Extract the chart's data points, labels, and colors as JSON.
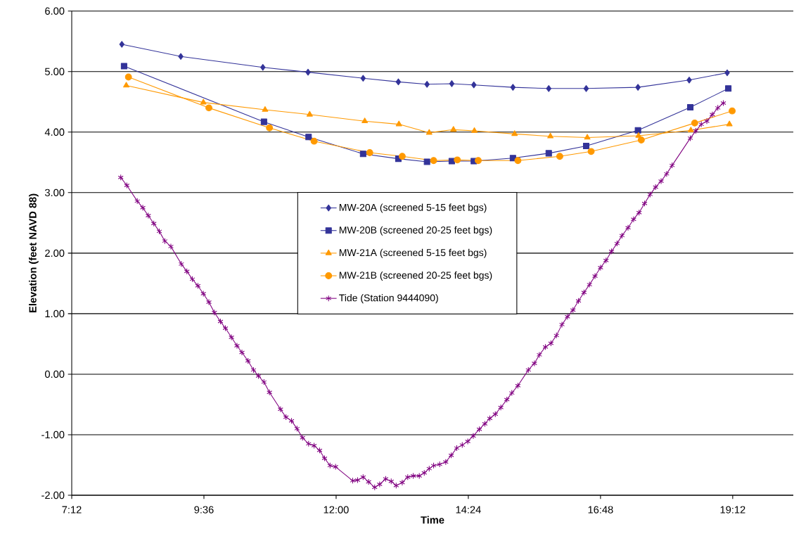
{
  "chart_data": {
    "type": "line",
    "xlabel": "Time",
    "ylabel": "Elevation (feet NAVD 88)",
    "xlim": [
      7.2,
      20.3
    ],
    "ylim": [
      -2,
      6
    ],
    "xticks": [
      {
        "value": 7.2,
        "label": "7:12"
      },
      {
        "value": 9.6,
        "label": "9:36"
      },
      {
        "value": 12,
        "label": "12:00"
      },
      {
        "value": 14.4,
        "label": "14:24"
      },
      {
        "value": 16.8,
        "label": "16:48"
      },
      {
        "value": 19.2,
        "label": "19:12"
      }
    ],
    "yticks": [
      {
        "value": -2,
        "label": "-2.00"
      },
      {
        "value": -1,
        "label": "-1.00"
      },
      {
        "value": 0,
        "label": "0.00"
      },
      {
        "value": 1,
        "label": "1.00"
      },
      {
        "value": 2,
        "label": "2.00"
      },
      {
        "value": 3,
        "label": "3.00"
      },
      {
        "value": 4,
        "label": "4.00"
      },
      {
        "value": 5,
        "label": "5.00"
      },
      {
        "value": 6,
        "label": "6.00"
      }
    ],
    "grid": "y",
    "legend": "center",
    "line_style": "solid",
    "series": [
      {
        "name": "MW-20A (screened 5-15 feet bgs)",
        "color": "#333399",
        "marker": "diamond",
        "x": [
          8.11,
          9.18,
          10.67,
          11.49,
          12.49,
          13.13,
          13.65,
          14.1,
          14.5,
          15.21,
          15.86,
          16.54,
          17.48,
          18.41,
          19.1
        ],
        "values": [
          5.45,
          5.25,
          5.07,
          4.99,
          4.89,
          4.83,
          4.79,
          4.8,
          4.78,
          4.74,
          4.72,
          4.72,
          4.74,
          4.86,
          4.98
        ]
      },
      {
        "name": "MW-20B (screened 20-25 feet bgs)",
        "color": "#333399",
        "marker": "square",
        "x": [
          8.15,
          10.69,
          11.5,
          12.49,
          13.13,
          13.65,
          14.1,
          14.5,
          15.21,
          15.86,
          16.54,
          17.48,
          18.43,
          19.12
        ],
        "values": [
          5.09,
          4.17,
          3.92,
          3.64,
          3.56,
          3.51,
          3.52,
          3.52,
          3.57,
          3.65,
          3.77,
          4.03,
          4.41,
          4.72
        ]
      },
      {
        "name": "MW-21A (screened 5-15 feet bgs)",
        "color": "#ff9900",
        "marker": "triangle",
        "x": [
          8.19,
          9.59,
          10.71,
          11.52,
          12.52,
          13.14,
          13.69,
          14.13,
          14.51,
          15.24,
          15.89,
          16.56,
          17.49,
          18.44,
          19.14
        ],
        "values": [
          4.77,
          4.49,
          4.37,
          4.29,
          4.18,
          4.13,
          3.99,
          4.04,
          4.02,
          3.97,
          3.93,
          3.91,
          3.94,
          4.03,
          4.13
        ]
      },
      {
        "name": "MW-21B (screened 20-25 feet bgs)",
        "color": "#ff9900",
        "marker": "circle",
        "x": [
          8.23,
          9.69,
          10.79,
          11.6,
          12.61,
          13.2,
          13.77,
          14.2,
          14.58,
          15.3,
          16.06,
          16.63,
          17.54,
          18.51,
          19.19
        ],
        "values": [
          4.91,
          4.4,
          4.07,
          3.85,
          3.66,
          3.6,
          3.53,
          3.54,
          3.53,
          3.53,
          3.6,
          3.68,
          3.87,
          4.15,
          4.35
        ]
      },
      {
        "name": "Tide (Station 9444090)",
        "color": "#800080",
        "marker": "cross",
        "x": [
          8.09,
          8.2,
          8.39,
          8.49,
          8.59,
          8.69,
          8.79,
          8.89,
          9.0,
          9.19,
          9.29,
          9.39,
          9.49,
          9.59,
          9.69,
          9.79,
          9.9,
          9.99,
          10.1,
          10.2,
          10.29,
          10.4,
          10.5,
          10.59,
          10.69,
          10.79,
          10.99,
          11.09,
          11.19,
          11.29,
          11.39,
          11.5,
          11.6,
          11.7,
          11.79,
          11.89,
          11.99,
          12.3,
          12.39,
          12.49,
          12.59,
          12.7,
          12.79,
          12.9,
          13.0,
          13.09,
          13.2,
          13.3,
          13.4,
          13.51,
          13.6,
          13.69,
          13.77,
          13.88,
          13.99,
          14.09,
          14.19,
          14.29,
          14.39,
          14.49,
          14.6,
          14.7,
          14.79,
          14.89,
          14.99,
          15.1,
          15.19,
          15.3,
          15.49,
          15.6,
          15.69,
          15.8,
          15.9,
          16.0,
          16.1,
          16.2,
          16.3,
          16.4,
          16.5,
          16.6,
          16.7,
          16.8,
          16.9,
          17.0,
          17.1,
          17.19,
          17.3,
          17.4,
          17.5,
          17.6,
          17.7,
          17.8,
          17.9,
          18.0,
          18.1,
          18.43,
          18.53,
          18.63,
          18.73,
          18.83,
          18.93,
          19.03
        ],
        "values": [
          3.25,
          3.12,
          2.86,
          2.75,
          2.62,
          2.49,
          2.36,
          2.2,
          2.11,
          1.82,
          1.7,
          1.57,
          1.46,
          1.33,
          1.19,
          1.02,
          0.87,
          0.76,
          0.61,
          0.47,
          0.36,
          0.22,
          0.07,
          -0.03,
          -0.13,
          -0.3,
          -0.58,
          -0.71,
          -0.77,
          -0.9,
          -1.05,
          -1.15,
          -1.18,
          -1.26,
          -1.39,
          -1.51,
          -1.53,
          -1.76,
          -1.75,
          -1.7,
          -1.78,
          -1.87,
          -1.82,
          -1.73,
          -1.77,
          -1.84,
          -1.79,
          -1.7,
          -1.68,
          -1.68,
          -1.63,
          -1.56,
          -1.51,
          -1.49,
          -1.45,
          -1.34,
          -1.22,
          -1.17,
          -1.11,
          -1.02,
          -0.91,
          -0.82,
          -0.73,
          -0.66,
          -0.55,
          -0.42,
          -0.31,
          -0.19,
          0.07,
          0.18,
          0.32,
          0.45,
          0.51,
          0.64,
          0.82,
          0.95,
          1.06,
          1.21,
          1.35,
          1.48,
          1.62,
          1.76,
          1.88,
          2.03,
          2.16,
          2.29,
          2.42,
          2.56,
          2.67,
          2.82,
          2.97,
          3.09,
          3.19,
          3.31,
          3.45,
          3.9,
          4.02,
          4.13,
          4.18,
          4.29,
          4.4,
          4.48
        ]
      }
    ]
  }
}
